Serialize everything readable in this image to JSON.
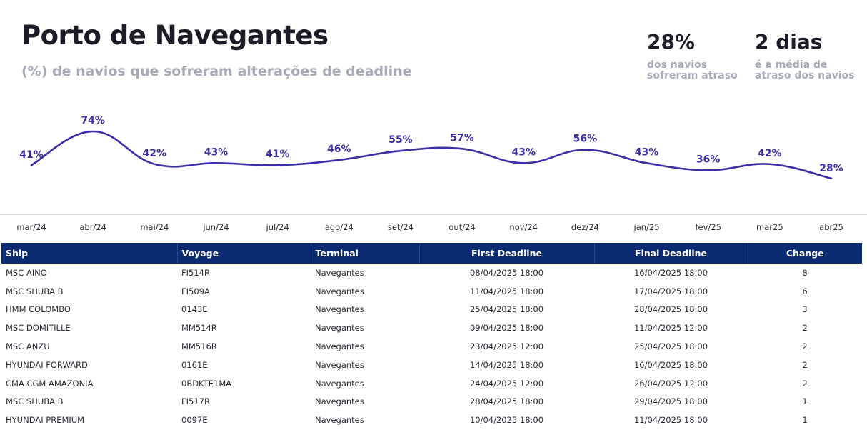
{
  "header": {
    "title": "Porto de Navegantes",
    "subtitle": "(%) de navios que sofreram alterações de deadline"
  },
  "kpis": [
    {
      "value": "28%",
      "caption_line1": "dos navios",
      "caption_line2": "sofreram atraso"
    },
    {
      "value": "2 dias",
      "caption_line1": "é a média de",
      "caption_line2": "atraso dos navios"
    }
  ],
  "colors": {
    "line": "#3b2fa8",
    "header_bg": "#0a2a72",
    "muted_text": "#a5acb8"
  },
  "chart_data": {
    "type": "line",
    "categories": [
      "mar/24",
      "abr/24",
      "mai/24",
      "jun/24",
      "jul/24",
      "ago/24",
      "set/24",
      "out/24",
      "nov/24",
      "dez/24",
      "jan/25",
      "fev/25",
      "mar25",
      "abr25"
    ],
    "series": [
      {
        "values": [
          41,
          74,
          42,
          43,
          41,
          46,
          55,
          57,
          43,
          56,
          43,
          36,
          42,
          28
        ],
        "labels": [
          "41%",
          "74%",
          "42%",
          "43%",
          "41%",
          "46%",
          "55%",
          "57%",
          "43%",
          "56%",
          "43%",
          "36%",
          "42%",
          "28%"
        ]
      }
    ],
    "title": "",
    "xlabel": "",
    "ylabel": "",
    "grid": false,
    "smooth": true
  },
  "table": {
    "columns": [
      "Ship",
      "Voyage",
      "Terminal",
      "First Deadline",
      "Final Deadline",
      "Change"
    ],
    "rows": [
      [
        "MSC AINO",
        "FI514R",
        "Navegantes",
        "08/04/2025 18:00",
        "16/04/2025 18:00",
        "8"
      ],
      [
        "MSC SHUBA B",
        "FI509A",
        "Navegantes",
        "11/04/2025 18:00",
        "17/04/2025 18:00",
        "6"
      ],
      [
        "HMM COLOMBO",
        "0143E",
        "Navegantes",
        "25/04/2025 18:00",
        "28/04/2025 18:00",
        "3"
      ],
      [
        "MSC DOMITILLE",
        "MM514R",
        "Navegantes",
        "09/04/2025 18:00",
        "11/04/2025 12:00",
        "2"
      ],
      [
        "MSC ANZU",
        "MM516R",
        "Navegantes",
        "23/04/2025 12:00",
        "25/04/2025 18:00",
        "2"
      ],
      [
        "HYUNDAI FORWARD",
        "0161E",
        "Navegantes",
        "14/04/2025 18:00",
        "16/04/2025 18:00",
        "2"
      ],
      [
        "CMA CGM AMAZONIA",
        "0BDKTE1MA",
        "Navegantes",
        "24/04/2025 12:00",
        "26/04/2025 12:00",
        "2"
      ],
      [
        "MSC SHUBA B",
        "FI517R",
        "Navegantes",
        "28/04/2025 18:00",
        "29/04/2025 18:00",
        "1"
      ],
      [
        "HYUNDAI PREMIUM",
        "0097E",
        "Navegantes",
        "10/04/2025 18:00",
        "11/04/2025 18:00",
        "1"
      ]
    ]
  }
}
